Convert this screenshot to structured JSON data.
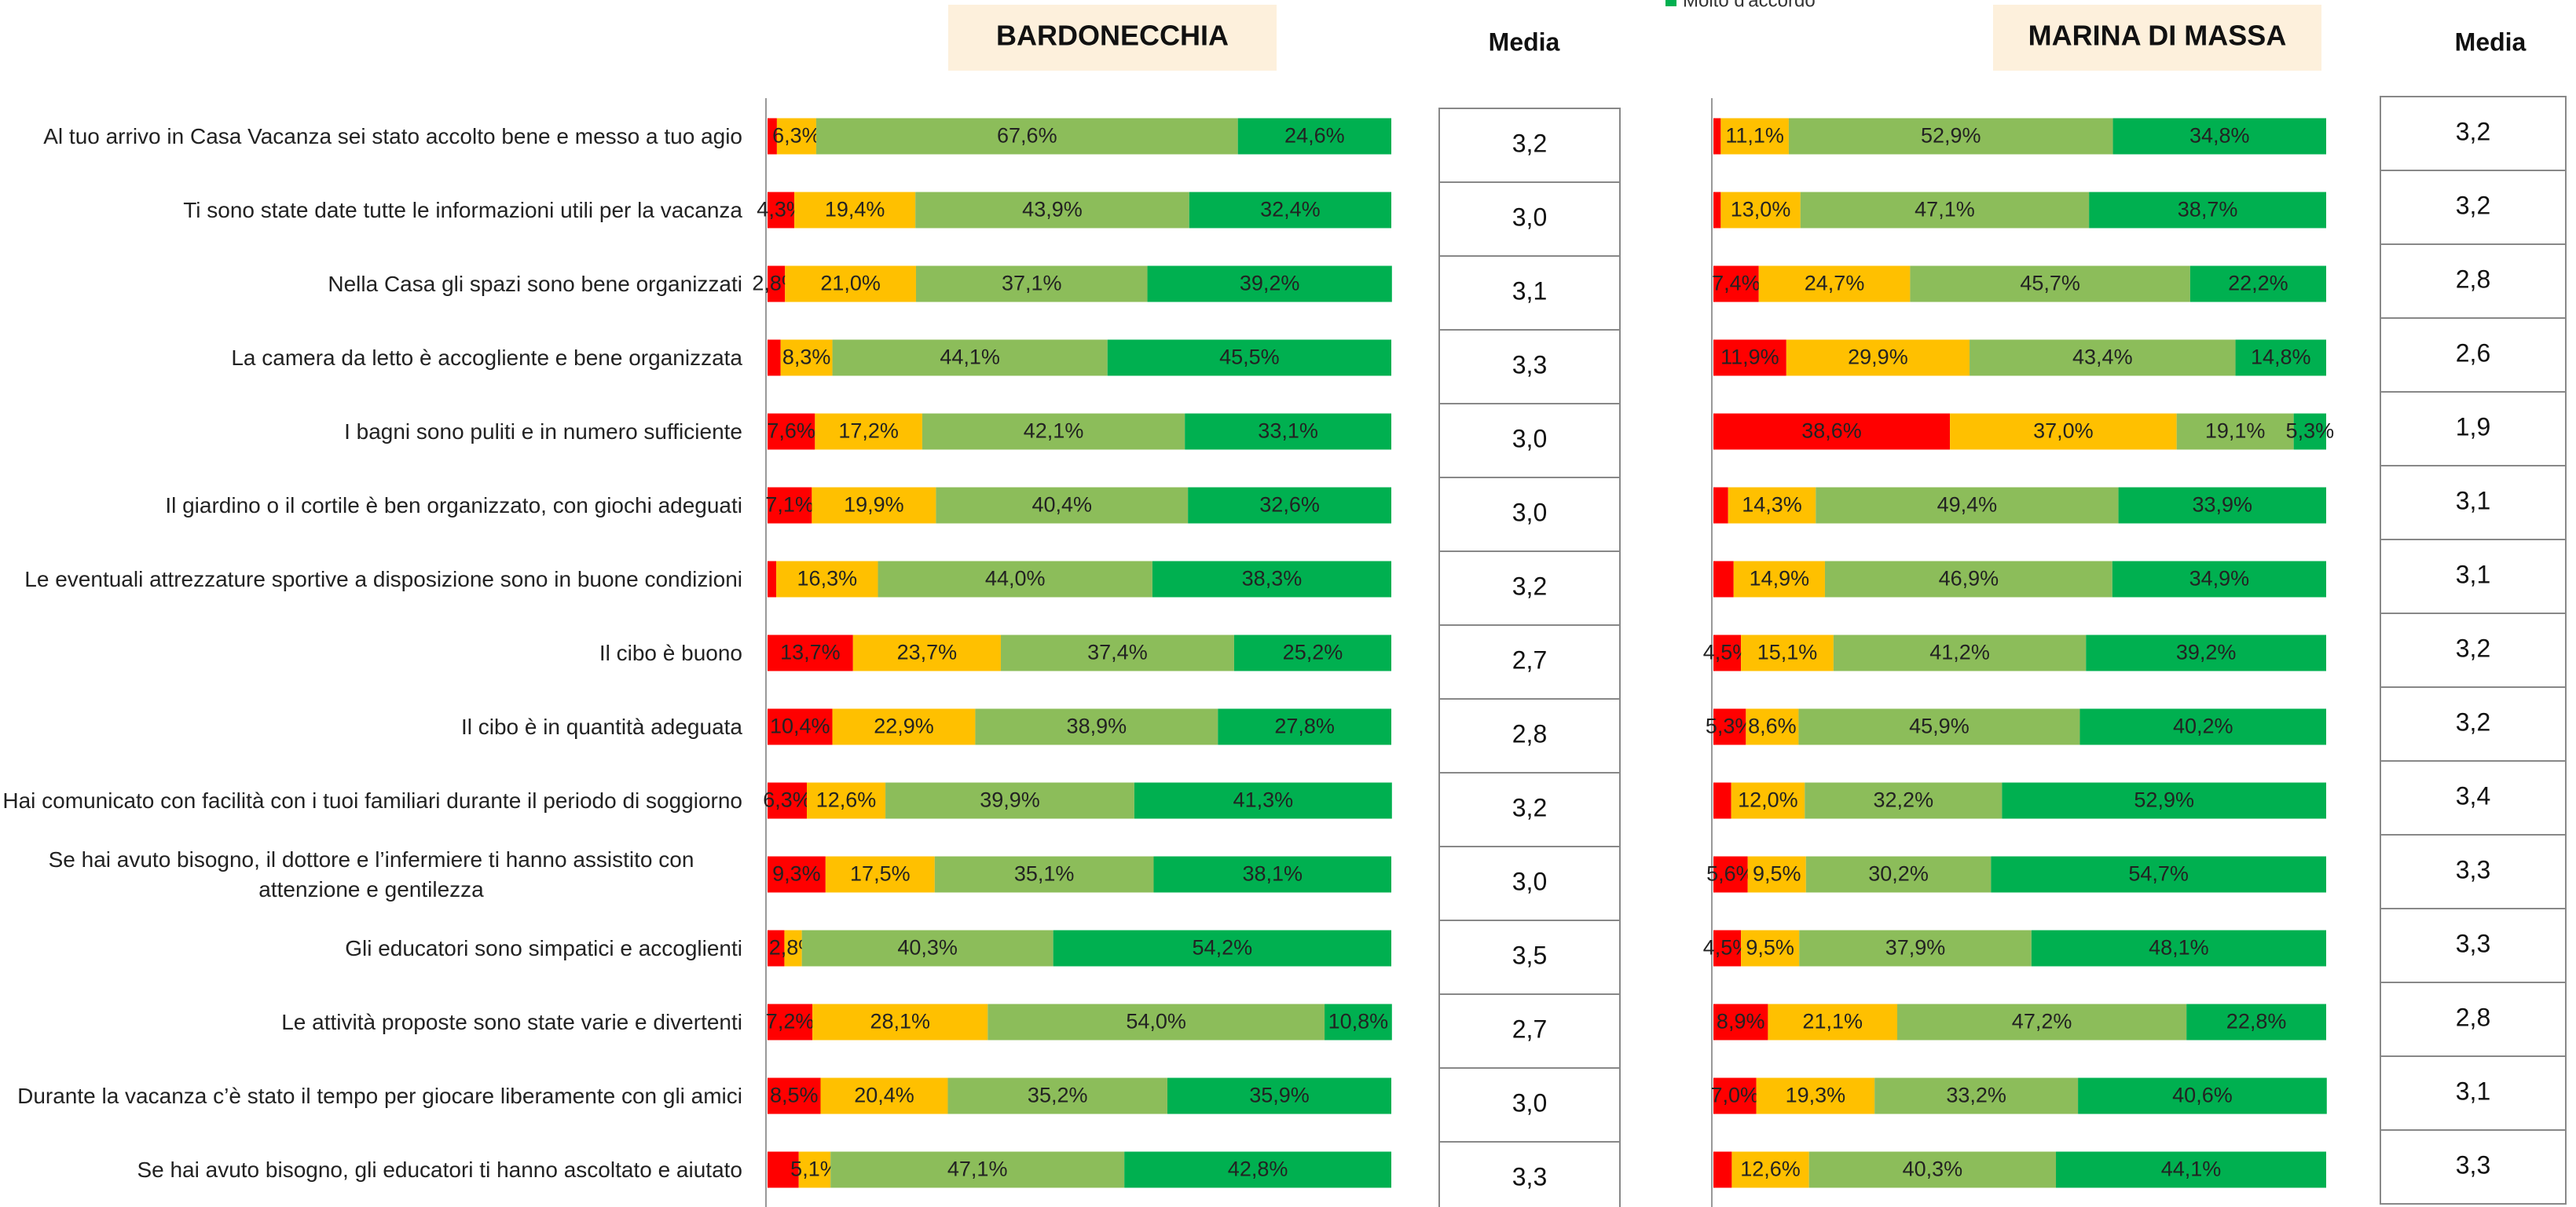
{
  "chart_data": [
    {
      "type": "bar",
      "orientation": "horizontal",
      "stacked": true,
      "title": "BARDONECCHIA",
      "xlim": [
        0,
        100
      ],
      "categories": [
        "Al tuo arrivo in Casa Vacanza sei stato accolto bene e messo a tuo agio",
        "Ti sono state date tutte le informazioni utili per la vacanza",
        "Nella Casa gli spazi sono bene organizzati",
        "La camera da letto è accogliente e bene organizzata",
        "I bagni sono puliti e in numero sufficiente",
        "Il giardino o il cortile è ben organizzato, con giochi adeguati",
        "Le eventuali attrezzature sportive a disposizione sono in buone condizioni",
        "Il cibo è buono",
        "Il cibo è in quantità adeguata",
        "Hai comunicato con facilità con i tuoi familiari durante il periodo di soggiorno",
        "Se hai avuto bisogno, il dottore e l’infermiere ti hanno assistito con attenzione e gentilezza",
        "Gli educatori sono simpatici e accoglienti",
        "Le attività proposte sono state varie e divertenti",
        "Durante la vacanza c’è stato il tempo per giocare liberamente con gli amici",
        "Se hai avuto bisogno, gli educatori ti hanno ascoltato e aiutato"
      ],
      "series": [
        {
          "color": "#ff0000",
          "values": [
            1.5,
            4.3,
            2.8,
            2.1,
            7.6,
            7.1,
            1.4,
            13.7,
            10.4,
            6.3,
            9.3,
            2.7,
            7.2,
            8.5,
            5.0
          ],
          "value_labels": [
            null,
            "4,3%",
            "2,8%",
            null,
            "7,6%",
            "7,1%",
            null,
            "13,7%",
            "10,4%",
            "6,3%",
            "9,3%",
            null,
            "7,2%",
            "8,5%",
            null
          ]
        },
        {
          "color": "#ffc000",
          "values": [
            6.3,
            19.4,
            21.0,
            8.3,
            17.2,
            19.9,
            16.3,
            23.7,
            22.9,
            12.6,
            17.5,
            2.8,
            28.1,
            20.4,
            5.1
          ],
          "value_labels": [
            "6,3%",
            "19,4%",
            "21,0%",
            "8,3%",
            "17,2%",
            "19,9%",
            "16,3%",
            "23,7%",
            "22,9%",
            "12,6%",
            "17,5%",
            "2,8%",
            "28,1%",
            "20,4%",
            "5,1%"
          ]
        },
        {
          "color": "#8cbd5a",
          "values": [
            67.6,
            43.9,
            37.1,
            44.1,
            42.1,
            40.4,
            44.0,
            37.4,
            38.9,
            39.9,
            35.1,
            40.3,
            54.0,
            35.2,
            47.1
          ],
          "value_labels": [
            "67,6%",
            "43,9%",
            "37,1%",
            "44,1%",
            "42,1%",
            "40,4%",
            "44,0%",
            "37,4%",
            "38,9%",
            "39,9%",
            "35,1%",
            "40,3%",
            "54,0%",
            "35,2%",
            "47,1%"
          ]
        },
        {
          "name": "Molto d'accordo",
          "color": "#00b050",
          "values": [
            24.6,
            32.4,
            39.2,
            45.5,
            33.1,
            32.6,
            38.3,
            25.2,
            27.8,
            41.3,
            38.1,
            54.2,
            10.8,
            35.9,
            42.8
          ],
          "value_labels": [
            "24,6%",
            "32,4%",
            "39,2%",
            "45,5%",
            "33,1%",
            "32,6%",
            "38,3%",
            "25,2%",
            "27,8%",
            "41,3%",
            "38,1%",
            "54,2%",
            "10,8%",
            "35,9%",
            "42,8%"
          ]
        }
      ],
      "media_title": "Media",
      "media": [
        "3,2",
        "3,0",
        "3,1",
        "3,3",
        "3,0",
        "3,0",
        "3,2",
        "2,7",
        "2,8",
        "3,2",
        "3,0",
        "3,5",
        "2,7",
        "3,0",
        "3,3"
      ]
    },
    {
      "type": "bar",
      "orientation": "horizontal",
      "stacked": true,
      "title": "MARINA DI MASSA",
      "xlim": [
        0,
        100
      ],
      "series": [
        {
          "color": "#ff0000",
          "values": [
            1.2,
            1.2,
            7.4,
            11.9,
            38.6,
            2.4,
            3.3,
            4.5,
            5.3,
            2.9,
            5.6,
            4.5,
            8.9,
            7.0,
            3.0
          ],
          "value_labels": [
            null,
            null,
            "7,4%",
            "11,9%",
            "38,6%",
            null,
            null,
            "4,5%",
            "5,3%",
            null,
            "5,6%",
            "4,5%",
            "8,9%",
            "7,0%",
            null
          ]
        },
        {
          "color": "#ffc000",
          "values": [
            11.1,
            13.0,
            24.7,
            29.9,
            37.0,
            14.3,
            14.9,
            15.1,
            8.6,
            12.0,
            9.5,
            9.5,
            21.1,
            19.3,
            12.6
          ],
          "value_labels": [
            "11,1%",
            "13,0%",
            "24,7%",
            "29,9%",
            "37,0%",
            "14,3%",
            "14,9%",
            "15,1%",
            "8,6%",
            "12,0%",
            "9,5%",
            "9,5%",
            "21,1%",
            "19,3%",
            "12,6%"
          ]
        },
        {
          "color": "#8cbd5a",
          "values": [
            52.9,
            47.1,
            45.7,
            43.4,
            19.1,
            49.4,
            46.9,
            41.2,
            45.9,
            32.2,
            30.2,
            37.9,
            47.2,
            33.2,
            40.3
          ],
          "value_labels": [
            "52,9%",
            "47,1%",
            "45,7%",
            "43,4%",
            "19,1%",
            "49,4%",
            "46,9%",
            "41,2%",
            "45,9%",
            "32,2%",
            "30,2%",
            "37,9%",
            "47,2%",
            "33,2%",
            "40,3%"
          ]
        },
        {
          "color": "#00b050",
          "values": [
            34.8,
            38.7,
            22.2,
            14.8,
            5.3,
            33.9,
            34.9,
            39.2,
            40.2,
            52.9,
            54.7,
            48.1,
            22.8,
            40.6,
            44.1
          ],
          "value_labels": [
            "34,8%",
            "38,7%",
            "22,2%",
            "14,8%",
            "5,3%",
            "33,9%",
            "34,9%",
            "39,2%",
            "40,2%",
            "52,9%",
            "54,7%",
            "48,1%",
            "22,8%",
            "40,6%",
            "44,1%"
          ]
        }
      ],
      "media_title": "Media",
      "media": [
        "3,2",
        "3,2",
        "2,8",
        "2,6",
        "1,9",
        "3,1",
        "3,1",
        "3,2",
        "3,2",
        "3,4",
        "3,3",
        "3,3",
        "2,8",
        "3,1",
        "3,3"
      ]
    }
  ]
}
